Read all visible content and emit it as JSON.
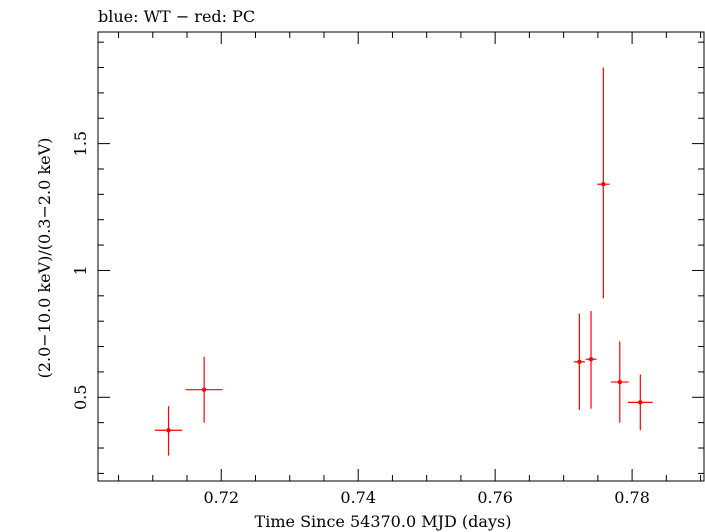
{
  "chart_data": {
    "type": "scatter",
    "title": "blue: WT − red: PC",
    "xlabel": "Time Since 54370.0 MJD (days)",
    "ylabel": "(2.0−10.0 keV)/(0.3−2.0 keV)",
    "xlim": [
      0.702,
      0.7905
    ],
    "ylim": [
      0.17,
      1.94
    ],
    "x_ticks": [
      {
        "value": 0.72,
        "label": "0.72"
      },
      {
        "value": 0.74,
        "label": "0.74"
      },
      {
        "value": 0.76,
        "label": "0.76"
      },
      {
        "value": 0.78,
        "label": "0.78"
      }
    ],
    "y_ticks": [
      {
        "value": 0.5,
        "label": "0.5"
      },
      {
        "value": 1.0,
        "label": "1"
      },
      {
        "value": 1.5,
        "label": "1.5"
      }
    ],
    "grid": false,
    "series": [
      {
        "color": "#ff0000",
        "points": [
          {
            "x": 0.7123,
            "xerr": 0.002,
            "y": 0.37,
            "ylo": 0.27,
            "yhi": 0.465
          },
          {
            "x": 0.7175,
            "xerr": 0.0027,
            "y": 0.53,
            "ylo": 0.4,
            "yhi": 0.66
          },
          {
            "x": 0.7723,
            "xerr": 0.0008,
            "y": 0.64,
            "ylo": 0.45,
            "yhi": 0.83
          },
          {
            "x": 0.774,
            "xerr": 0.0008,
            "y": 0.65,
            "ylo": 0.455,
            "yhi": 0.84
          },
          {
            "x": 0.7758,
            "xerr": 0.0009,
            "y": 1.34,
            "ylo": 0.89,
            "yhi": 1.8
          },
          {
            "x": 0.7782,
            "xerr": 0.0013,
            "y": 0.56,
            "ylo": 0.4,
            "yhi": 0.72
          },
          {
            "x": 0.7812,
            "xerr": 0.0018,
            "y": 0.48,
            "ylo": 0.37,
            "yhi": 0.59
          }
        ]
      }
    ]
  }
}
